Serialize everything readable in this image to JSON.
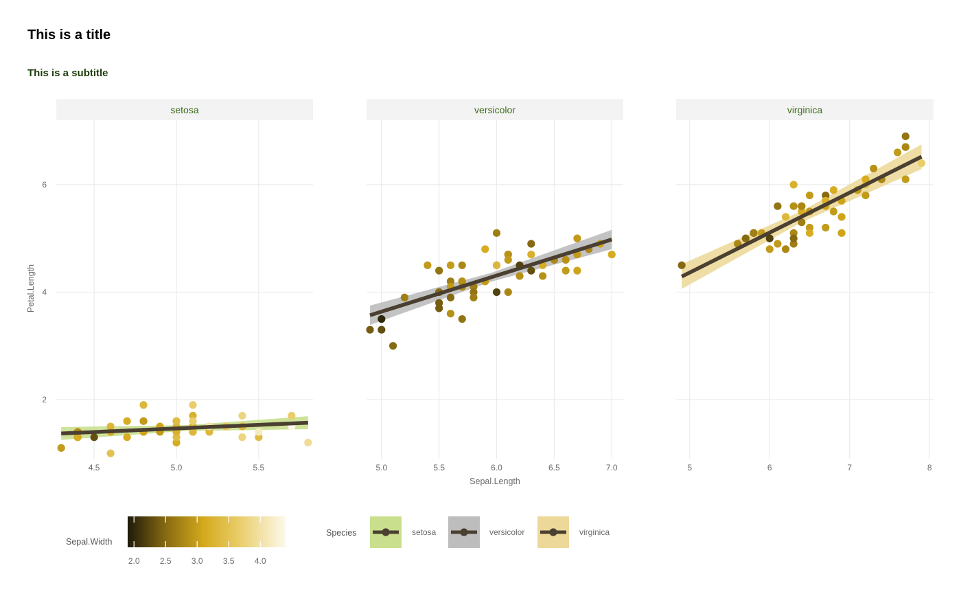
{
  "chart_data": {
    "type": "scatter",
    "title": "This is a title",
    "subtitle": "This is a subtitle",
    "xlabel": "Sepal.Length",
    "ylabel": "Petal.Length",
    "ylim": [
      0.9,
      7.2
    ],
    "yticks": [
      2,
      4,
      6
    ],
    "grid": true,
    "colors": {
      "line": "#4a3f30",
      "gradient": [
        "#1f1a0a",
        "#8a6d12",
        "#d4a91c",
        "#e8cc66",
        "#fdf9ea"
      ],
      "ribbon": {
        "setosa": "#c9df8e",
        "versicolor": "#bdbdbd",
        "virginica": "#ecd99a"
      },
      "strip_text": "#3b6b17"
    },
    "panels": [
      {
        "name": "setosa",
        "xlim": [
          4.27,
          5.83
        ],
        "xticks": [
          4.5,
          5.0,
          5.5
        ],
        "xtick_labels": [
          "4.5",
          "5.0",
          "5.5"
        ],
        "fit": {
          "x": [
            4.3,
            5.8
          ],
          "y": [
            1.37,
            1.57
          ],
          "band": 0.12
        },
        "points": [
          [
            4.3,
            1.1,
            3.0
          ],
          [
            4.4,
            1.4,
            2.9
          ],
          [
            4.4,
            1.3,
            3.0
          ],
          [
            4.4,
            1.3,
            3.2
          ],
          [
            4.5,
            1.3,
            2.3
          ],
          [
            4.6,
            1.4,
            3.1
          ],
          [
            4.6,
            1.5,
            3.4
          ],
          [
            4.6,
            1.0,
            3.6
          ],
          [
            4.6,
            1.4,
            3.2
          ],
          [
            4.7,
            1.3,
            3.2
          ],
          [
            4.7,
            1.6,
            3.2
          ],
          [
            4.8,
            1.4,
            3.0
          ],
          [
            4.8,
            1.6,
            3.4
          ],
          [
            4.8,
            1.9,
            3.4
          ],
          [
            4.8,
            1.4,
            3.1
          ],
          [
            4.8,
            1.6,
            3.0
          ],
          [
            4.9,
            1.4,
            3.0
          ],
          [
            4.9,
            1.5,
            3.1
          ],
          [
            5.0,
            1.4,
            3.6
          ],
          [
            5.0,
            1.5,
            3.4
          ],
          [
            5.0,
            1.2,
            3.2
          ],
          [
            5.0,
            1.3,
            3.5
          ],
          [
            5.0,
            1.6,
            3.0
          ],
          [
            5.0,
            1.6,
            3.5
          ],
          [
            5.0,
            1.4,
            3.3
          ],
          [
            5.1,
            1.4,
            3.5
          ],
          [
            5.1,
            1.5,
            3.7
          ],
          [
            5.1,
            1.9,
            3.8
          ],
          [
            5.1,
            1.5,
            3.3
          ],
          [
            5.1,
            1.7,
            3.3
          ],
          [
            5.1,
            1.6,
            3.8
          ],
          [
            5.1,
            1.4,
            3.4
          ],
          [
            5.2,
            1.5,
            3.5
          ],
          [
            5.2,
            1.4,
            3.4
          ],
          [
            5.2,
            1.5,
            4.1
          ],
          [
            5.3,
            1.5,
            3.7
          ],
          [
            5.4,
            1.7,
            3.9
          ],
          [
            5.4,
            1.5,
            3.7
          ],
          [
            5.4,
            1.3,
            3.9
          ],
          [
            5.4,
            1.5,
            3.4
          ],
          [
            5.5,
            1.3,
            3.5
          ],
          [
            5.5,
            1.4,
            4.2
          ],
          [
            5.7,
            1.7,
            3.8
          ],
          [
            5.7,
            1.5,
            4.4
          ],
          [
            5.8,
            1.2,
            4.0
          ]
        ]
      },
      {
        "name": "versicolor",
        "xlim": [
          4.87,
          7.1
        ],
        "xticks": [
          5.0,
          5.5,
          6.0,
          6.5,
          7.0
        ],
        "xtick_labels": [
          "5.0",
          "5.5",
          "6.0",
          "6.5",
          "7.0"
        ],
        "fit": {
          "x": [
            4.9,
            7.0
          ],
          "y": [
            3.57,
            4.98
          ],
          "band": 0.18
        },
        "points": [
          [
            4.9,
            3.3,
            2.4
          ],
          [
            5.0,
            3.5,
            2.0
          ],
          [
            5.0,
            3.3,
            2.3
          ],
          [
            5.1,
            3.0,
            2.5
          ],
          [
            5.2,
            3.9,
            2.7
          ],
          [
            5.4,
            4.5,
            3.0
          ],
          [
            5.5,
            4.0,
            2.3
          ],
          [
            5.5,
            4.4,
            2.6
          ],
          [
            5.5,
            3.8,
            2.4
          ],
          [
            5.5,
            3.7,
            2.4
          ],
          [
            5.5,
            4.0,
            2.5
          ],
          [
            5.6,
            4.5,
            3.0
          ],
          [
            5.6,
            3.6,
            2.9
          ],
          [
            5.6,
            4.2,
            2.7
          ],
          [
            5.6,
            4.1,
            3.0
          ],
          [
            5.6,
            3.9,
            2.5
          ],
          [
            5.7,
            4.5,
            2.8
          ],
          [
            5.7,
            3.5,
            2.6
          ],
          [
            5.7,
            4.2,
            3.0
          ],
          [
            5.7,
            4.2,
            2.9
          ],
          [
            5.7,
            4.1,
            2.8
          ],
          [
            5.8,
            4.1,
            2.7
          ],
          [
            5.8,
            4.0,
            2.6
          ],
          [
            5.8,
            3.9,
            2.7
          ],
          [
            5.9,
            4.8,
            3.2
          ],
          [
            5.9,
            4.2,
            3.0
          ],
          [
            6.0,
            4.0,
            2.2
          ],
          [
            6.0,
            4.5,
            2.9
          ],
          [
            6.0,
            5.1,
            2.7
          ],
          [
            6.0,
            4.5,
            3.4
          ],
          [
            6.1,
            4.7,
            2.8
          ],
          [
            6.1,
            4.0,
            2.8
          ],
          [
            6.1,
            4.7,
            2.9
          ],
          [
            6.1,
            4.6,
            3.0
          ],
          [
            6.2,
            4.5,
            2.2
          ],
          [
            6.2,
            4.3,
            2.9
          ],
          [
            6.3,
            4.7,
            3.3
          ],
          [
            6.3,
            4.9,
            2.5
          ],
          [
            6.3,
            4.4,
            2.3
          ],
          [
            6.4,
            4.5,
            3.2
          ],
          [
            6.4,
            4.3,
            2.9
          ],
          [
            6.5,
            4.6,
            2.8
          ],
          [
            6.6,
            4.6,
            2.9
          ],
          [
            6.6,
            4.4,
            3.0
          ],
          [
            6.7,
            4.4,
            3.1
          ],
          [
            6.7,
            4.7,
            3.0
          ],
          [
            6.7,
            5.0,
            3.0
          ],
          [
            6.8,
            4.8,
            2.8
          ],
          [
            6.9,
            4.9,
            3.1
          ],
          [
            7.0,
            4.7,
            3.2
          ]
        ]
      },
      {
        "name": "virginica",
        "xlim": [
          4.83,
          8.05
        ],
        "xticks": [
          5,
          6,
          7,
          8
        ],
        "xtick_labels": [
          "5",
          "6",
          "7",
          "8"
        ],
        "fit": {
          "x": [
            4.9,
            7.9
          ],
          "y": [
            4.29,
            6.52
          ],
          "band": 0.23
        },
        "points": [
          [
            4.9,
            4.5,
            2.5
          ],
          [
            5.6,
            4.9,
            2.8
          ],
          [
            5.7,
            5.0,
            2.5
          ],
          [
            5.8,
            5.1,
            2.7
          ],
          [
            5.8,
            5.1,
            2.8
          ],
          [
            5.8,
            5.1,
            2.7
          ],
          [
            5.9,
            5.1,
            3.0
          ],
          [
            6.0,
            4.8,
            3.0
          ],
          [
            6.0,
            5.0,
            2.2
          ],
          [
            6.1,
            5.6,
            2.6
          ],
          [
            6.1,
            4.9,
            3.0
          ],
          [
            6.2,
            5.4,
            3.4
          ],
          [
            6.2,
            4.8,
            2.8
          ],
          [
            6.3,
            6.0,
            3.3
          ],
          [
            6.3,
            5.6,
            3.4
          ],
          [
            6.3,
            5.1,
            2.8
          ],
          [
            6.3,
            4.9,
            2.7
          ],
          [
            6.3,
            5.6,
            2.9
          ],
          [
            6.3,
            5.0,
            2.5
          ],
          [
            6.4,
            5.6,
            2.8
          ],
          [
            6.4,
            5.3,
            2.7
          ],
          [
            6.4,
            5.5,
            3.2
          ],
          [
            6.4,
            5.6,
            2.8
          ],
          [
            6.5,
            5.8,
            3.0
          ],
          [
            6.5,
            5.5,
            3.0
          ],
          [
            6.5,
            5.2,
            3.0
          ],
          [
            6.5,
            5.1,
            3.2
          ],
          [
            6.7,
            5.7,
            3.3
          ],
          [
            6.7,
            5.8,
            2.5
          ],
          [
            6.7,
            5.6,
            3.1
          ],
          [
            6.7,
            5.7,
            3.3
          ],
          [
            6.7,
            5.2,
            3.0
          ],
          [
            6.8,
            5.5,
            3.0
          ],
          [
            6.8,
            5.9,
            3.2
          ],
          [
            6.9,
            5.7,
            3.1
          ],
          [
            6.9,
            5.1,
            3.1
          ],
          [
            6.9,
            5.4,
            3.1
          ],
          [
            7.1,
            5.9,
            3.0
          ],
          [
            7.2,
            6.0,
            3.6
          ],
          [
            7.2,
            5.8,
            3.0
          ],
          [
            7.2,
            6.1,
            3.2
          ],
          [
            7.3,
            6.3,
            2.9
          ],
          [
            7.4,
            6.1,
            2.8
          ],
          [
            7.6,
            6.6,
            3.0
          ],
          [
            7.7,
            6.7,
            3.8
          ],
          [
            7.7,
            6.9,
            2.6
          ],
          [
            7.7,
            6.7,
            2.8
          ],
          [
            7.7,
            6.1,
            3.0
          ],
          [
            7.9,
            6.4,
            3.8
          ]
        ]
      }
    ],
    "legend": {
      "position": "bottom",
      "color_title": "Sepal.Width",
      "color_range": [
        1.9,
        4.4
      ],
      "color_ticks": [
        2.0,
        2.5,
        3.0,
        3.5,
        4.0
      ],
      "color_tick_labels": [
        "2.0",
        "2.5",
        "3.0",
        "3.5",
        "4.0"
      ],
      "fill_title": "Species",
      "fill_items": [
        "setosa",
        "versicolor",
        "virginica"
      ]
    }
  }
}
